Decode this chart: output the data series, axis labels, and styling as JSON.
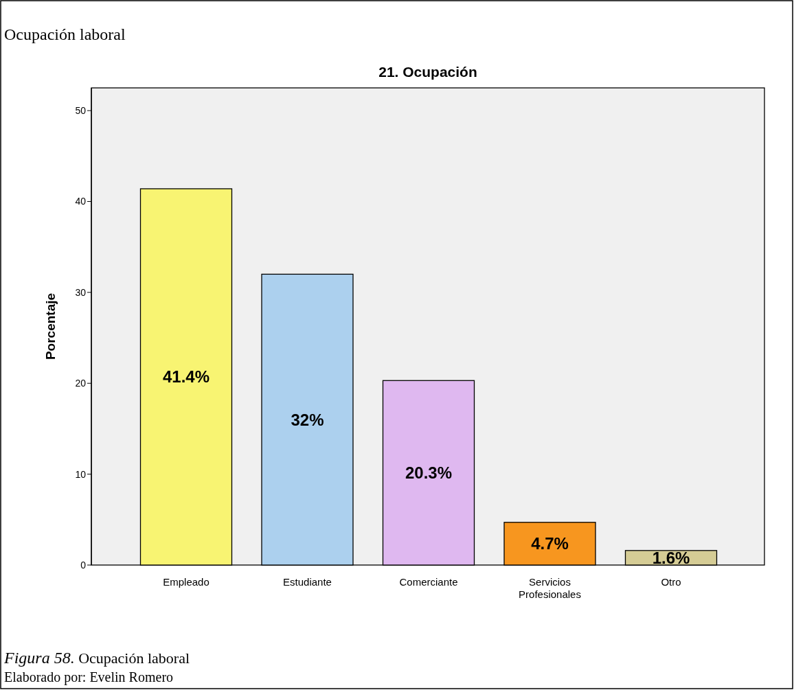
{
  "chart_data": {
    "type": "bar",
    "title": "21. Ocupación",
    "subtitle": "Ocupación laboral",
    "ylabel": "Porcentaje",
    "categories": [
      "Empleado",
      "Estudiante",
      "Comerciante",
      "Servicios Profesionales",
      "Otro"
    ],
    "values": [
      41.4,
      32,
      20.3,
      4.7,
      1.6
    ],
    "colors": [
      "#f8f472",
      "#acd0ee",
      "#dfb8f0",
      "#f7961f",
      "#d5cc95"
    ],
    "value_labels": [
      "41.4%",
      "32%",
      "20.3%",
      "4.7%",
      "1.6%"
    ],
    "ylim": [
      0,
      52.5
    ],
    "yticks": [
      0,
      10,
      20,
      30,
      40,
      50
    ],
    "grid": false,
    "annotations": [
      "Figura 58. Ocupación laboral",
      "Elaborado por: Evelin Romero"
    ]
  }
}
